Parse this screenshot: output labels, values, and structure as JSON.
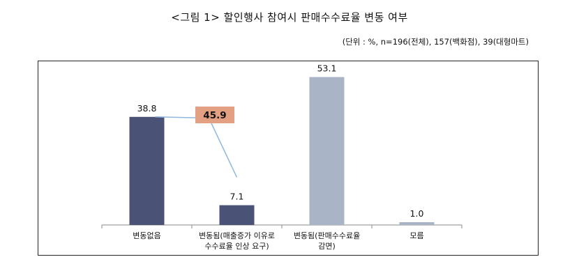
{
  "figure": {
    "title": "<그림 1> 할인행사 참여시 판매수수료율 변동 여부",
    "note": "(단위 : %, n=196(전체), 157(백화점), 39(대형마트)"
  },
  "chart_data": {
    "type": "bar",
    "categories": [
      [
        "변동없음"
      ],
      [
        "변동됨(매출증가  이유로",
        "수수료율 인상 요구)"
      ],
      [
        "변동됨(판매수수료율",
        "감면)"
      ],
      [
        "모름"
      ]
    ],
    "values": [
      38.8,
      7.1,
      53.1,
      1.0
    ],
    "value_labels": [
      "38.8",
      "7.1",
      "53.1",
      "1.0"
    ],
    "bar_colors": [
      "#4a5275",
      "#4a5275",
      "#a9b4c6",
      "#a9b4c6"
    ],
    "ylim": [
      0,
      60
    ],
    "grid": false,
    "annotations": [
      {
        "text": "45.9",
        "refers_to_categories": [
          0,
          1
        ],
        "box_color": "#e4a083",
        "line_color": "#8fb8e0"
      }
    ]
  }
}
